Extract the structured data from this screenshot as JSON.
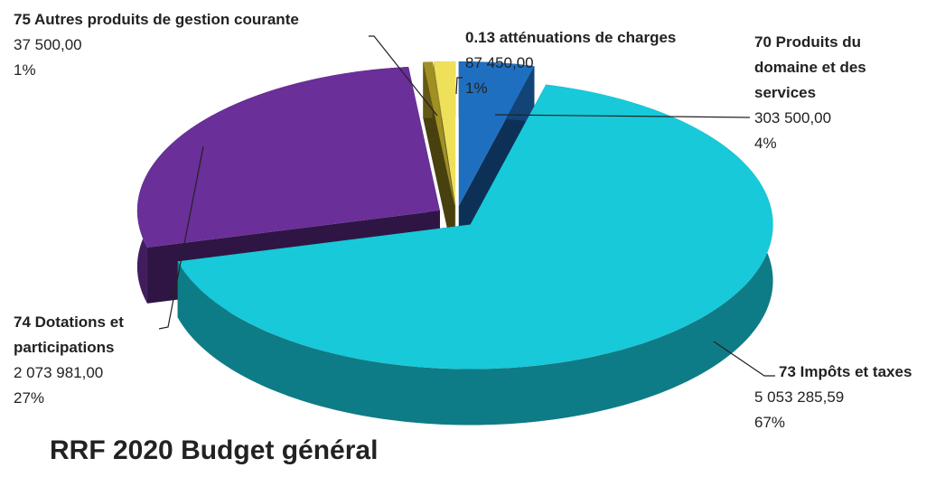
{
  "chart_data": {
    "type": "pie",
    "title": "RRF 2020 Budget général",
    "categories": [
      "70 Produits du domaine et des services",
      "73 Impôts et taxes",
      "74 Dotations et participations",
      "75 Autres produits de gestion courante",
      "0.13 atténuations de charges"
    ],
    "values": [
      303500,
      5053285.59,
      2073981,
      37500,
      87450
    ],
    "value_labels": [
      "303 500,00",
      "5 053 285,59",
      "2 073 981,00",
      "37 500,00",
      "87 450,00"
    ],
    "percents": [
      4,
      67,
      27,
      1,
      1
    ],
    "percent_labels": [
      "4%",
      "67%",
      "27%",
      "1%",
      "1%"
    ],
    "colors": [
      "#1f6fc0",
      "#17c9d9",
      "#6a2f98",
      "#a08f22",
      "#efe05a"
    ]
  }
}
